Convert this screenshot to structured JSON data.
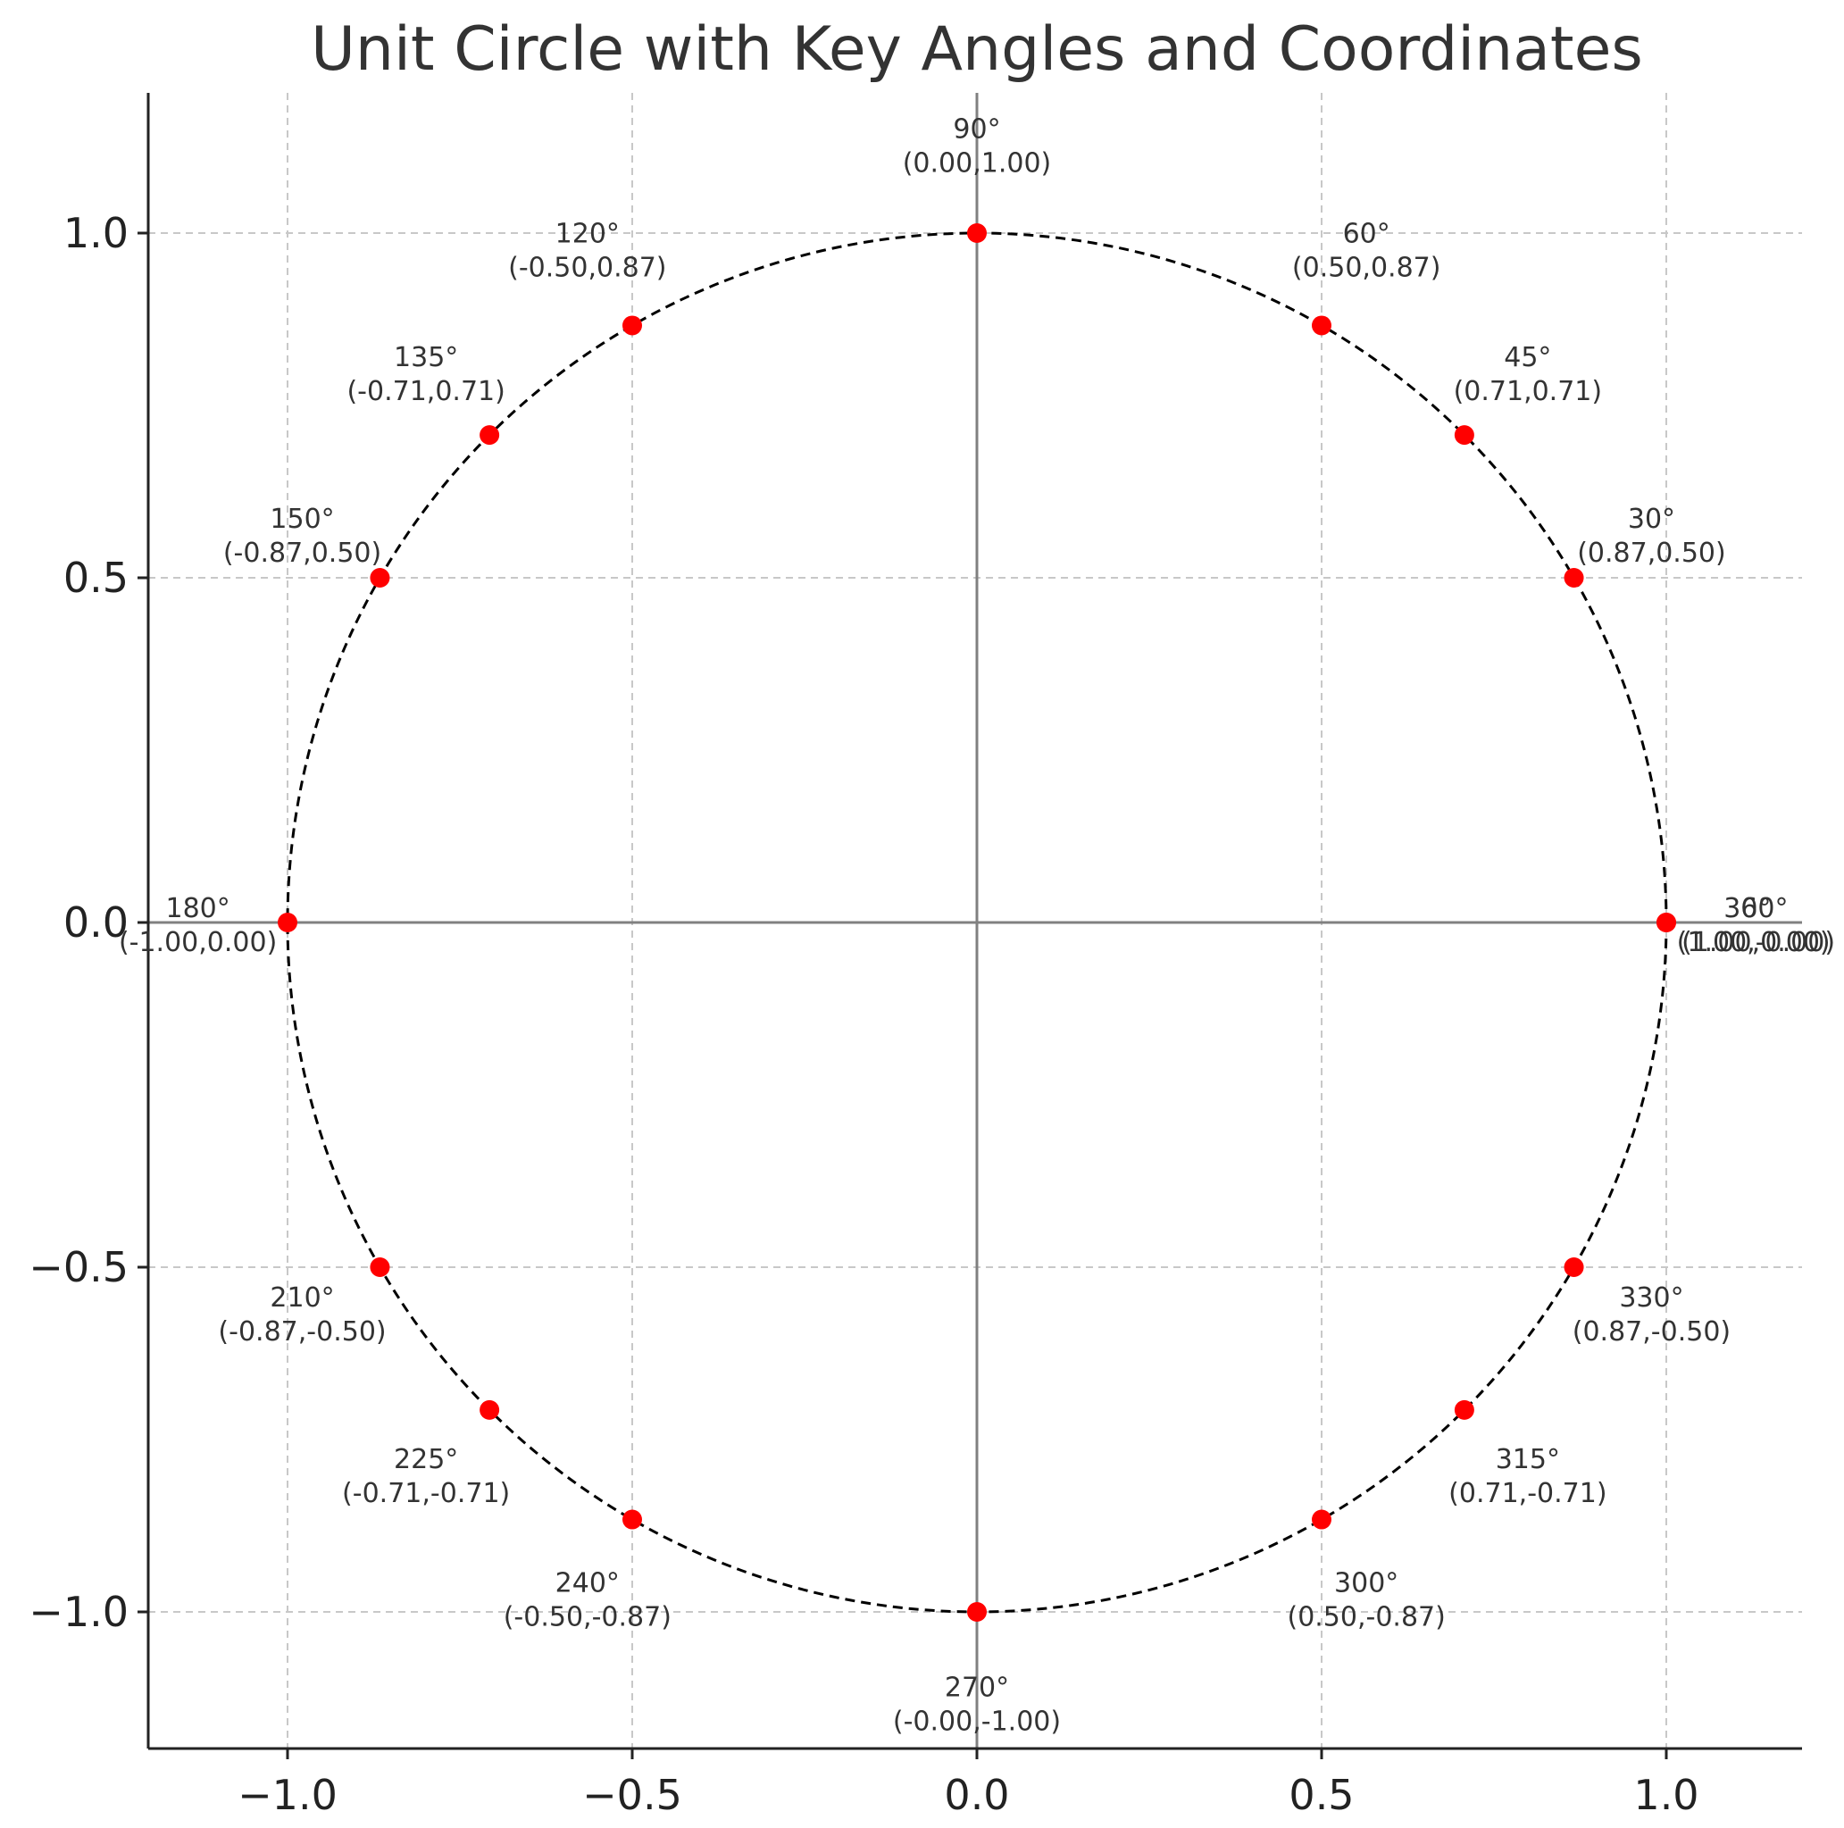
{
  "title": "Unit Circle with Key Angles and Coordinates",
  "chart_data": {
    "type": "scatter",
    "title": "Unit Circle with Key Angles and Coordinates",
    "xlabel": "",
    "ylabel": "",
    "xlim": [
      -1.2,
      1.2
    ],
    "ylim": [
      -1.2,
      1.2
    ],
    "xticks": [
      -1.0,
      -0.5,
      0.0,
      0.5,
      1.0
    ],
    "yticks": [
      -1.0,
      -0.5,
      0.0,
      0.5,
      1.0
    ],
    "xtick_labels": [
      "−1.0",
      "−0.5",
      "0.0",
      "0.5",
      "1.0"
    ],
    "ytick_labels": [
      "−1.0",
      "−0.5",
      "0.0",
      "0.5",
      "1.0"
    ],
    "grid": true,
    "circle": {
      "center": [
        0,
        0
      ],
      "radius": 1,
      "style": "dashed",
      "color": "#000000"
    },
    "axes_lines": {
      "x": 0,
      "y": 0,
      "color": "#808080"
    },
    "point_color": "#ff0000",
    "points": [
      {
        "angle": "0°",
        "x": 1.0,
        "y": 0.0,
        "coords": "(1.00,0.00)"
      },
      {
        "angle": "30°",
        "x": 0.866,
        "y": 0.5,
        "coords": "(0.87,0.50)"
      },
      {
        "angle": "45°",
        "x": 0.7071,
        "y": 0.7071,
        "coords": "(0.71,0.71)"
      },
      {
        "angle": "60°",
        "x": 0.5,
        "y": 0.866,
        "coords": "(0.50,0.87)"
      },
      {
        "angle": "90°",
        "x": 0.0,
        "y": 1.0,
        "coords": "(0.00,1.00)"
      },
      {
        "angle": "120°",
        "x": -0.5,
        "y": 0.866,
        "coords": "(-0.50,0.87)"
      },
      {
        "angle": "135°",
        "x": -0.7071,
        "y": 0.7071,
        "coords": "(-0.71,0.71)"
      },
      {
        "angle": "150°",
        "x": -0.866,
        "y": 0.5,
        "coords": "(-0.87,0.50)"
      },
      {
        "angle": "180°",
        "x": -1.0,
        "y": 0.0,
        "coords": "(-1.00,0.00)"
      },
      {
        "angle": "210°",
        "x": -0.866,
        "y": -0.5,
        "coords": "(-0.87,-0.50)"
      },
      {
        "angle": "225°",
        "x": -0.7071,
        "y": -0.7071,
        "coords": "(-0.71,-0.71)"
      },
      {
        "angle": "240°",
        "x": -0.5,
        "y": -0.866,
        "coords": "(-0.50,-0.87)"
      },
      {
        "angle": "270°",
        "x": 0.0,
        "y": -1.0,
        "coords": "(-0.00,-1.00)"
      },
      {
        "angle": "300°",
        "x": 0.5,
        "y": -0.866,
        "coords": "(0.50,-0.87)"
      },
      {
        "angle": "315°",
        "x": 0.7071,
        "y": -0.7071,
        "coords": "(0.71,-0.71)"
      },
      {
        "angle": "330°",
        "x": 0.866,
        "y": -0.5,
        "coords": "(0.87,-0.50)"
      },
      {
        "angle": "360°",
        "x": 1.0,
        "y": 0.0,
        "coords": "(1.00,-0.00)"
      }
    ]
  }
}
